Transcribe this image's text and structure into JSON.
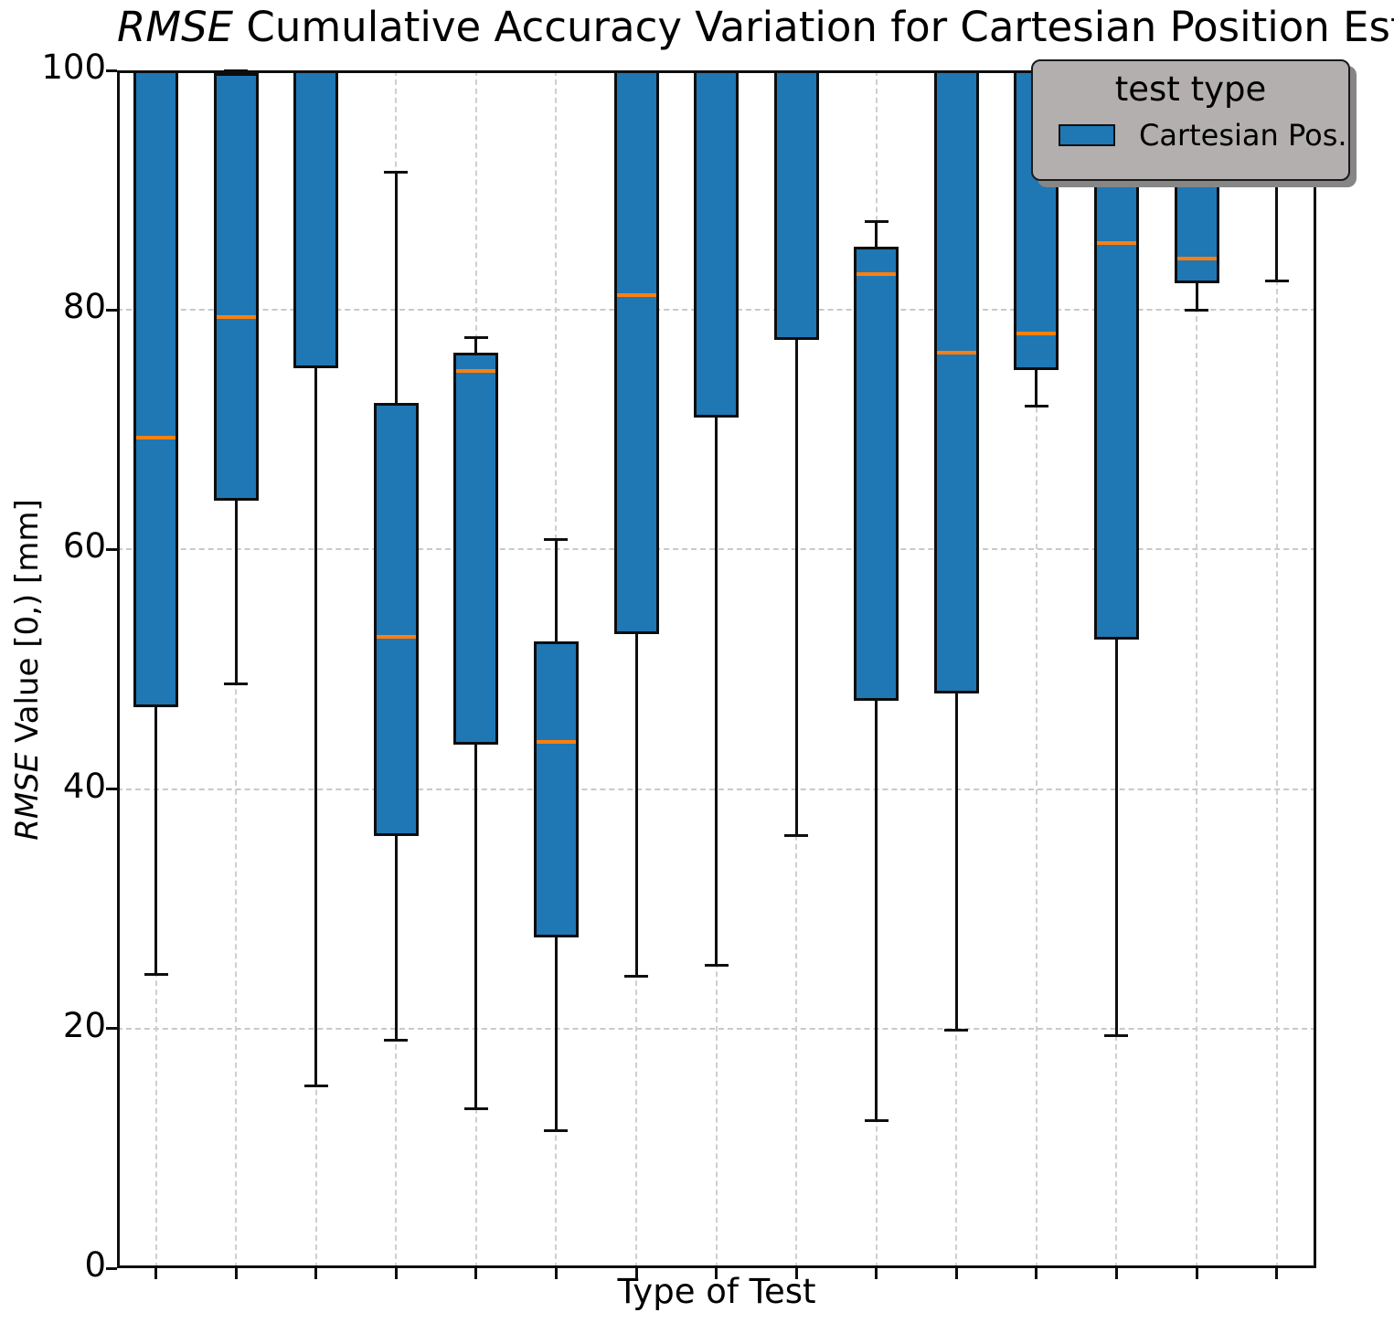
{
  "title": {
    "italic": "RMSE",
    "rest": " Cumulative Accuracy Variation for Cartesian Position Estimation"
  },
  "axes": {
    "xlabel": "Type of Test",
    "ylabel_italic": "RMSE",
    "ylabel_rest": " Value [0,) [mm]"
  },
  "legend": {
    "title": "test type",
    "entries": [
      {
        "label": "Cartesian Pos.",
        "color": "#1f77b4"
      }
    ]
  },
  "colors": {
    "box_fill": "#1f77b4",
    "box_edge": "#0d0d0d",
    "median": "#ff7f0e",
    "grid": "#c9c9c9",
    "legend_bg": "#b3afaf",
    "legend_shadow": "#868686"
  },
  "chart_data": {
    "type": "box",
    "title": "RMSE Cumulative Accuracy Variation for Cartesian Position Estimation",
    "xlabel": "Type of Test",
    "ylabel": "RMSE Value [0,) [mm]",
    "ylim": [
      0,
      100
    ],
    "yticks": [
      0,
      20,
      40,
      60,
      80,
      100
    ],
    "grid": true,
    "legend_position": "upper right",
    "legend_title": "test type",
    "series_name": "Cartesian Pos.",
    "note": "q3 of 105 means box extends above the y-axis limit (clipped at 100); med/whishi of null means that element is above the limit or hidden behind the legend and not visible",
    "boxes": [
      {
        "pos": 1,
        "whislo": 24.5,
        "q1": 46.8,
        "med": 69.3,
        "q3": 105,
        "whishi": null
      },
      {
        "pos": 2,
        "whislo": 48.8,
        "q1": 64.1,
        "med": 79.4,
        "q3": 99.8,
        "whishi": 100
      },
      {
        "pos": 3,
        "whislo": 15.2,
        "q1": 75.1,
        "med": null,
        "q3": 105,
        "whishi": null
      },
      {
        "pos": 4,
        "whislo": 19.0,
        "q1": 36.1,
        "med": 52.7,
        "q3": 72.2,
        "whishi": 91.5
      },
      {
        "pos": 5,
        "whislo": 13.3,
        "q1": 43.7,
        "med": 74.9,
        "q3": 76.4,
        "whishi": 77.7
      },
      {
        "pos": 6,
        "whislo": 11.5,
        "q1": 27.6,
        "med": 43.9,
        "q3": 52.3,
        "whishi": 60.8
      },
      {
        "pos": 7,
        "whislo": 24.4,
        "q1": 52.9,
        "med": 81.2,
        "q3": 105,
        "whishi": null
      },
      {
        "pos": 8,
        "whislo": 25.3,
        "q1": 71.0,
        "med": null,
        "q3": 105,
        "whishi": null
      },
      {
        "pos": 9,
        "whislo": 36.1,
        "q1": 77.5,
        "med": null,
        "q3": 105,
        "whishi": null
      },
      {
        "pos": 10,
        "whislo": 12.3,
        "q1": 47.4,
        "med": 83.0,
        "q3": 85.3,
        "whishi": 87.4
      },
      {
        "pos": 11,
        "whislo": 19.9,
        "q1": 48.0,
        "med": 76.4,
        "q3": 105,
        "whishi": null
      },
      {
        "pos": 12,
        "whislo": 72.0,
        "q1": 75.0,
        "med": 78.0,
        "q3": 105,
        "whishi": null
      },
      {
        "pos": 13,
        "whislo": 19.4,
        "q1": 52.5,
        "med": 85.6,
        "q3": 105,
        "whishi": null
      },
      {
        "pos": 14,
        "whislo": 80.0,
        "q1": 82.2,
        "med": 84.3,
        "q3": 105,
        "whishi": null
      },
      {
        "pos": 15,
        "whislo": 82.4,
        "q1": 92.0,
        "med": null,
        "q3": 105,
        "whishi": null
      }
    ]
  }
}
